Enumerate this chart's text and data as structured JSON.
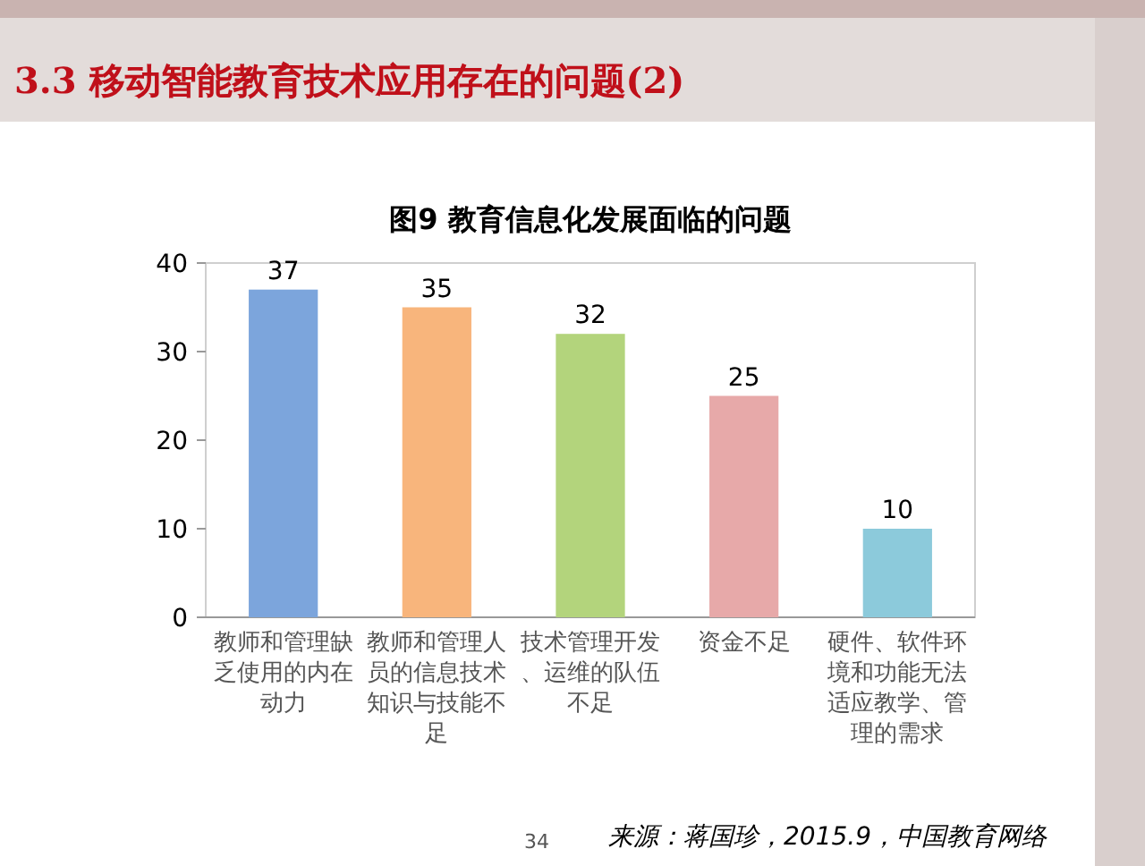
{
  "chart_data": {
    "type": "bar",
    "title": "3.3 移动智能教育技术应用存在的问题(2)",
    "subtitle": "图9 教育信息化发展面临的问题",
    "categories": [
      "教师和管理缺乏使用的内在动力",
      "教师和管理人员的信息技术知识与技能不足",
      "技术管理开发、运维的队伍不足",
      "资金不足",
      "硬件、软件环境和功能无法适应教学、管理的需求"
    ],
    "values": [
      37,
      35,
      32,
      25,
      10
    ],
    "colors": [
      "#7ca5dc",
      "#f8b57c",
      "#b3d47c",
      "#e7a9a9",
      "#8ccadb"
    ],
    "ylim": [
      0,
      40
    ],
    "yticks": [
      0,
      10,
      20,
      30,
      40
    ],
    "data_labels": true,
    "annotations": [
      "来源：蒋国珍，2015.9，中国教育网络",
      "34"
    ]
  }
}
